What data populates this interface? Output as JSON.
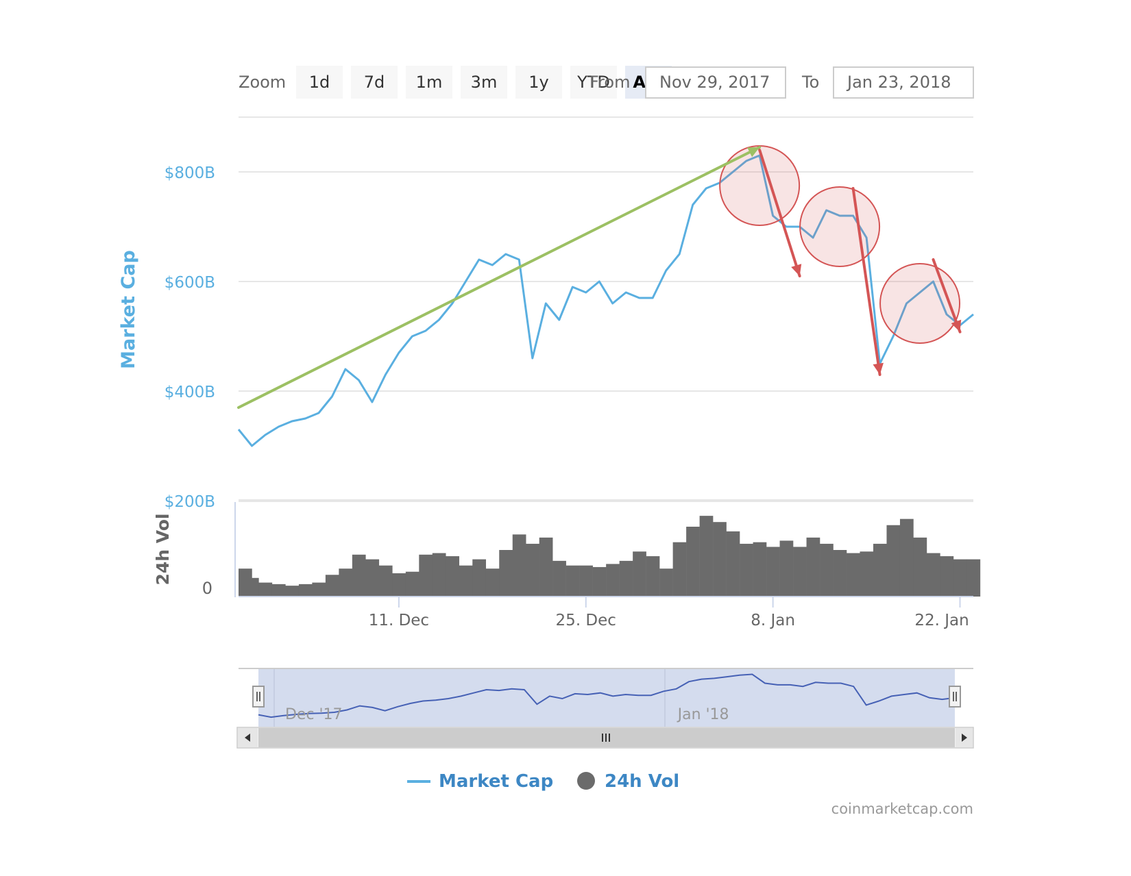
{
  "toolbar": {
    "zoom_label": "Zoom",
    "zoom_buttons": [
      "1d",
      "7d",
      "1m",
      "3m",
      "1y",
      "YTD",
      "ALL"
    ],
    "active_button": "ALL",
    "from_label": "From",
    "from_value": "Nov 29, 2017",
    "to_label": "To",
    "to_value": "Jan 23, 2018"
  },
  "colors": {
    "market_cap": "#5aafe0",
    "volume": "#6b6b6b",
    "trend_up": "#9cc063",
    "trend_down": "#d45555",
    "navigator_fill": "#ccd6eb",
    "navigator_line": "#4661b5",
    "legend_text": "#3d87c4"
  },
  "chart_data": {
    "type": "line",
    "x_start": "2017-11-29",
    "x_end": "2018-01-23",
    "grid": true,
    "y_axis": {
      "label": "Market Cap",
      "ticks": [
        {
          "value": 200,
          "label": "$200B"
        },
        {
          "value": 400,
          "label": "$400B"
        },
        {
          "value": 600,
          "label": "$600B"
        },
        {
          "value": 800,
          "label": "$800B"
        }
      ],
      "range": [
        200,
        900
      ]
    },
    "vol_axis": {
      "label": "24h Vol",
      "ticks": [
        {
          "value": 0,
          "label": "0"
        }
      ],
      "range": [
        0,
        60
      ]
    },
    "x_ticks": [
      {
        "date": "2017-12-11",
        "label": "11. Dec"
      },
      {
        "date": "2017-12-25",
        "label": "25. Dec"
      },
      {
        "date": "2018-01-08",
        "label": "8. Jan"
      },
      {
        "date": "2018-01-22",
        "label": "22. Jan"
      }
    ],
    "series": [
      {
        "name": "Market Cap",
        "x": [
          "2017-11-29",
          "2017-11-30",
          "2017-12-01",
          "2017-12-02",
          "2017-12-03",
          "2017-12-04",
          "2017-12-05",
          "2017-12-06",
          "2017-12-07",
          "2017-12-08",
          "2017-12-09",
          "2017-12-10",
          "2017-12-11",
          "2017-12-12",
          "2017-12-13",
          "2017-12-14",
          "2017-12-15",
          "2017-12-16",
          "2017-12-17",
          "2017-12-18",
          "2017-12-19",
          "2017-12-20",
          "2017-12-21",
          "2017-12-22",
          "2017-12-23",
          "2017-12-24",
          "2017-12-25",
          "2017-12-26",
          "2017-12-27",
          "2017-12-28",
          "2017-12-29",
          "2017-12-30",
          "2017-12-31",
          "2018-01-01",
          "2018-01-02",
          "2018-01-03",
          "2018-01-04",
          "2018-01-05",
          "2018-01-06",
          "2018-01-07",
          "2018-01-08",
          "2018-01-09",
          "2018-01-10",
          "2018-01-11",
          "2018-01-12",
          "2018-01-13",
          "2018-01-14",
          "2018-01-15",
          "2018-01-16",
          "2018-01-17",
          "2018-01-18",
          "2018-01-19",
          "2018-01-20",
          "2018-01-21",
          "2018-01-22",
          "2018-01-23"
        ],
        "values": [
          330,
          300,
          320,
          335,
          345,
          350,
          360,
          390,
          440,
          420,
          380,
          430,
          470,
          500,
          510,
          530,
          560,
          600,
          640,
          630,
          650,
          640,
          460,
          560,
          530,
          590,
          580,
          600,
          560,
          580,
          570,
          570,
          620,
          650,
          740,
          770,
          780,
          800,
          820,
          830,
          720,
          700,
          700,
          680,
          730,
          720,
          720,
          680,
          450,
          500,
          560,
          580,
          600,
          540,
          520,
          540
        ]
      },
      {
        "name": "24h Vol",
        "x": [
          "2017-11-29",
          "2017-11-30",
          "2017-12-01",
          "2017-12-02",
          "2017-12-03",
          "2017-12-04",
          "2017-12-05",
          "2017-12-06",
          "2017-12-07",
          "2017-12-08",
          "2017-12-09",
          "2017-12-10",
          "2017-12-11",
          "2017-12-12",
          "2017-12-13",
          "2017-12-14",
          "2017-12-15",
          "2017-12-16",
          "2017-12-17",
          "2017-12-18",
          "2017-12-19",
          "2017-12-20",
          "2017-12-21",
          "2017-12-22",
          "2017-12-23",
          "2017-12-24",
          "2017-12-25",
          "2017-12-26",
          "2017-12-27",
          "2017-12-28",
          "2017-12-29",
          "2017-12-30",
          "2017-12-31",
          "2018-01-01",
          "2018-01-02",
          "2018-01-03",
          "2018-01-04",
          "2018-01-05",
          "2018-01-06",
          "2018-01-07",
          "2018-01-08",
          "2018-01-09",
          "2018-01-10",
          "2018-01-11",
          "2018-01-12",
          "2018-01-13",
          "2018-01-14",
          "2018-01-15",
          "2018-01-16",
          "2018-01-17",
          "2018-01-18",
          "2018-01-19",
          "2018-01-20",
          "2018-01-21",
          "2018-01-22",
          "2018-01-23"
        ],
        "values": [
          18,
          12,
          9,
          8,
          7,
          8,
          9,
          14,
          18,
          27,
          24,
          20,
          15,
          16,
          27,
          28,
          26,
          20,
          24,
          18,
          30,
          40,
          34,
          38,
          23,
          20,
          20,
          19,
          21,
          23,
          29,
          26,
          18,
          35,
          45,
          52,
          48,
          42,
          34,
          35,
          32,
          36,
          32,
          38,
          34,
          30,
          28,
          29,
          34,
          46,
          50,
          38,
          28,
          26,
          24,
          24
        ]
      }
    ],
    "navigator": {
      "labels": [
        {
          "date": "2017-12-01",
          "label": "Dec '17"
        },
        {
          "date": "2018-01-01",
          "label": "Jan '18"
        }
      ]
    },
    "annotations": {
      "trend_up": {
        "from": {
          "date": "2017-11-29",
          "value": 370
        },
        "to": {
          "date": "2018-01-07",
          "value": 845
        }
      },
      "circles": [
        {
          "date": "2018-01-07",
          "value": 775
        },
        {
          "date": "2018-01-13",
          "value": 700
        },
        {
          "date": "2018-01-19",
          "value": 560
        }
      ],
      "trend_down": [
        {
          "from": {
            "date": "2018-01-07",
            "value": 840
          },
          "to": {
            "date": "2018-01-10",
            "value": 610
          }
        },
        {
          "from": {
            "date": "2018-01-14",
            "value": 770
          },
          "to": {
            "date": "2018-01-16",
            "value": 430
          }
        },
        {
          "from": {
            "date": "2018-01-20",
            "value": 640
          },
          "to": {
            "date": "2018-01-22",
            "value": 508
          }
        }
      ]
    }
  },
  "legend": {
    "market_cap_label": "Market Cap",
    "vol_label": "24h Vol"
  },
  "credit": "coinmarketcap.com"
}
